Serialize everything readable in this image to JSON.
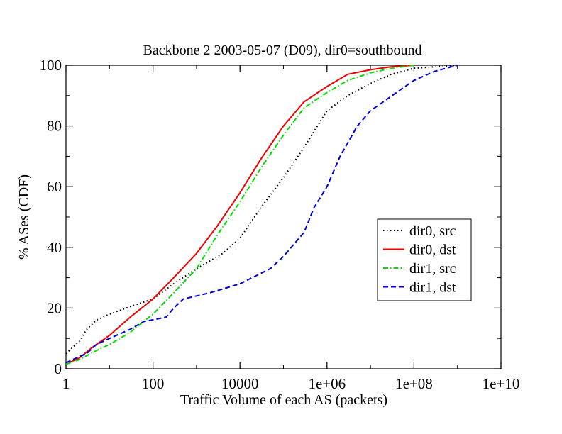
{
  "chart_data": {
    "type": "line",
    "title": "Backbone 2 2003-05-07 (D09), dir0=southbound",
    "xlabel": "Traffic Volume of each AS (packets)",
    "ylabel": "% ASes (CDF)",
    "x_scale": "log",
    "xlim": [
      1,
      10000000000
    ],
    "ylim": [
      0,
      100
    ],
    "x_ticks": [
      1,
      100,
      10000,
      1000000,
      100000000,
      10000000000
    ],
    "x_tick_labels": [
      "1",
      "100",
      "10000",
      "1e+06",
      "1e+08",
      "1e+10"
    ],
    "y_ticks": [
      0,
      20,
      40,
      60,
      80,
      100
    ],
    "y_tick_labels": [
      "0",
      "20",
      "40",
      "60",
      "80",
      "100"
    ],
    "grid": false,
    "legend_position": "right",
    "series": [
      {
        "name": "dir0, src",
        "color": "#000000",
        "dash": "dotted",
        "points": [
          [
            1,
            5
          ],
          [
            2,
            9
          ],
          [
            3,
            13
          ],
          [
            5,
            16
          ],
          [
            10,
            18
          ],
          [
            30,
            20.5
          ],
          [
            100,
            23
          ],
          [
            300,
            28
          ],
          [
            1000,
            33
          ],
          [
            2000,
            35.5
          ],
          [
            4000,
            38
          ],
          [
            10000,
            43
          ],
          [
            30000,
            53
          ],
          [
            100000,
            63
          ],
          [
            300000,
            73
          ],
          [
            1000000,
            85
          ],
          [
            3000000,
            90
          ],
          [
            10000000,
            94
          ],
          [
            30000000,
            97
          ],
          [
            100000000,
            99
          ],
          [
            1000000000,
            100
          ]
        ]
      },
      {
        "name": "dir0, dst",
        "color": "#ee0000",
        "dash": "solid",
        "points": [
          [
            1,
            1.5
          ],
          [
            2,
            3.5
          ],
          [
            4,
            7
          ],
          [
            10,
            11
          ],
          [
            30,
            17
          ],
          [
            100,
            23
          ],
          [
            300,
            30
          ],
          [
            1000,
            38
          ],
          [
            3000,
            47
          ],
          [
            10000,
            58
          ],
          [
            30000,
            69
          ],
          [
            100000,
            80
          ],
          [
            300000,
            88
          ],
          [
            1000000,
            93
          ],
          [
            3000000,
            97
          ],
          [
            10000000,
            98.5
          ],
          [
            30000000,
            99.5
          ],
          [
            100000000,
            100
          ]
        ]
      },
      {
        "name": "dir1, src",
        "color": "#00dd00",
        "dash": "dashdot",
        "points": [
          [
            1,
            1.5
          ],
          [
            2,
            3
          ],
          [
            5,
            6
          ],
          [
            10,
            8
          ],
          [
            30,
            12
          ],
          [
            100,
            18
          ],
          [
            300,
            25
          ],
          [
            1000,
            33
          ],
          [
            3000,
            44
          ],
          [
            10000,
            55
          ],
          [
            30000,
            66
          ],
          [
            100000,
            77
          ],
          [
            300000,
            86
          ],
          [
            1000000,
            91
          ],
          [
            3000000,
            95
          ],
          [
            10000000,
            97.5
          ],
          [
            30000000,
            99
          ],
          [
            100000000,
            100
          ]
        ]
      },
      {
        "name": "dir1, dst",
        "color": "#0000dd",
        "dash": "dashed",
        "points": [
          [
            1,
            2
          ],
          [
            2,
            4
          ],
          [
            3,
            5
          ],
          [
            5,
            8
          ],
          [
            10,
            10
          ],
          [
            30,
            13
          ],
          [
            60,
            15.5
          ],
          [
            200,
            17
          ],
          [
            300,
            20
          ],
          [
            500,
            23
          ],
          [
            2000,
            25
          ],
          [
            10000,
            28
          ],
          [
            50000,
            33
          ],
          [
            100000,
            37
          ],
          [
            300000,
            45
          ],
          [
            500000,
            53
          ],
          [
            1000000,
            60
          ],
          [
            2000000,
            70
          ],
          [
            5000000,
            80
          ],
          [
            10000000,
            85
          ],
          [
            50000000,
            92
          ],
          [
            100000000,
            95
          ],
          [
            300000000,
            98
          ],
          [
            1000000000,
            100
          ]
        ]
      }
    ]
  }
}
